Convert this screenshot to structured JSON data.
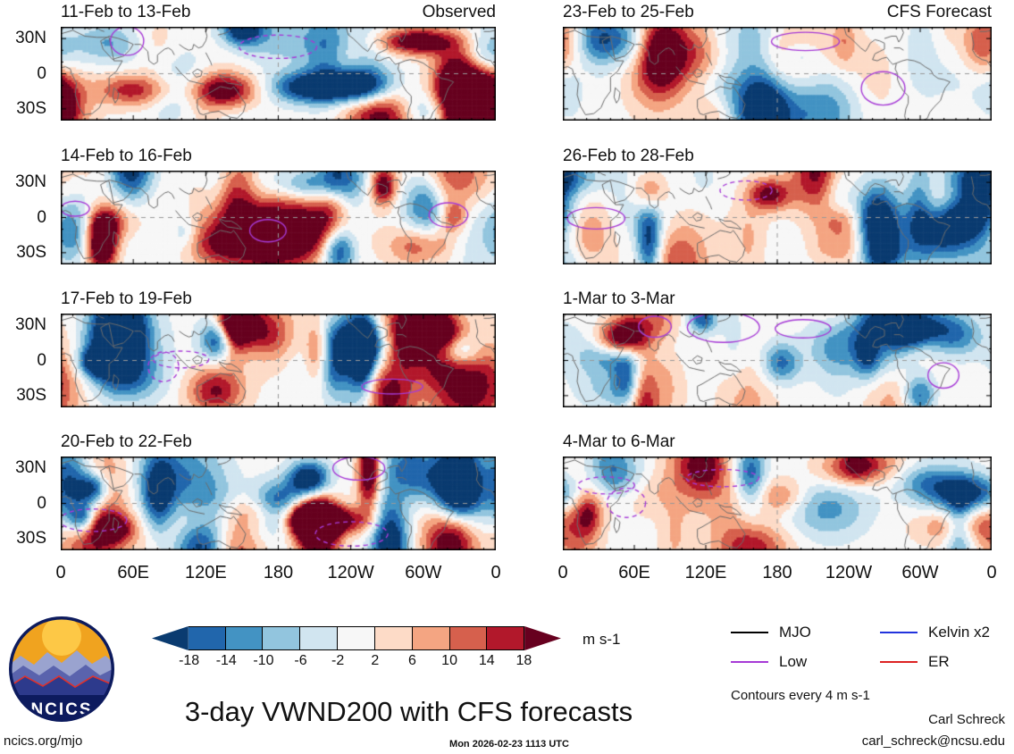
{
  "panels": [
    {
      "title": "11-Feb to 13-Feb",
      "corner": "Observed"
    },
    {
      "title": "14-Feb to 16-Feb",
      "corner": ""
    },
    {
      "title": "17-Feb to 19-Feb",
      "corner": ""
    },
    {
      "title": "20-Feb to 22-Feb",
      "corner": ""
    },
    {
      "title": "23-Feb to 25-Feb",
      "corner": "CFS Forecast"
    },
    {
      "title": "26-Feb to 28-Feb",
      "corner": ""
    },
    {
      "title": "1-Mar to 3-Mar",
      "corner": ""
    },
    {
      "title": "4-Mar to 6-Mar",
      "corner": ""
    }
  ],
  "axes": {
    "y_ticks": [
      "30N",
      "0",
      "30S"
    ],
    "x_ticks": [
      "0",
      "60E",
      "120E",
      "180",
      "120W",
      "60W",
      "0"
    ]
  },
  "colorbar": {
    "tick_labels": [
      "-18",
      "-14",
      "-10",
      "-6",
      "-2",
      "2",
      "6",
      "10",
      "14",
      "18"
    ],
    "colors": [
      "#0a3b70",
      "#2166ac",
      "#4393c3",
      "#92c5de",
      "#d1e5f0",
      "#f7f7f7",
      "#fddbc7",
      "#f4a582",
      "#d6604d",
      "#b2182b",
      "#67001f"
    ],
    "units": "m s-1"
  },
  "legend": {
    "entries": [
      {
        "label": "MJO",
        "color": "#000000"
      },
      {
        "label": "Low",
        "color": "#a63ad6"
      },
      {
        "label": "Kelvin x2",
        "color": "#2233dd"
      },
      {
        "label": "ER",
        "color": "#dd2222"
      }
    ],
    "note": "Contours every 4 m s-1"
  },
  "footer": {
    "title": "3-day VWND200 with CFS forecasts",
    "credit_name": "Carl Schreck",
    "credit_email": "carl_schreck@ncsu.edu",
    "site": "ncics.org/mjo",
    "timestamp": "Mon 2026-02-23 1113 UTC",
    "logo_text": "NCICS"
  },
  "chart_data": {
    "type": "heatmap",
    "subtype": "filled_contour_world_map_grid",
    "title": "3-day VWND200 with CFS forecasts",
    "variable": "200-hPa meridional wind (VWND200)",
    "units": "m s-1",
    "contour_note": "Contours every 4 m s-1",
    "fill_levels": [
      -18,
      -14,
      -10,
      -6,
      -2,
      2,
      6,
      10,
      14,
      18
    ],
    "lon_axis_ticks": [
      "0",
      "60E",
      "120E",
      "180",
      "120W",
      "60W",
      "0"
    ],
    "lat_axis_ticks": [
      "30N",
      "0",
      "30S"
    ],
    "columns": [
      {
        "label": "Observed",
        "panels": [
          "11-Feb to 13-Feb",
          "14-Feb to 16-Feb",
          "17-Feb to 19-Feb",
          "20-Feb to 22-Feb"
        ]
      },
      {
        "label": "CFS Forecast",
        "panels": [
          "23-Feb to 25-Feb",
          "26-Feb to 28-Feb",
          "1-Mar to 3-Mar",
          "4-Mar to 6-Mar"
        ]
      }
    ],
    "wave_overlays": [
      {
        "name": "MJO",
        "color": "black"
      },
      {
        "name": "Low",
        "color": "purple"
      },
      {
        "name": "Kelvin x2",
        "color": "blue"
      },
      {
        "name": "ER",
        "color": "red"
      }
    ],
    "legend_position": "bottom-right",
    "grid": "dashed equator and dateline reference lines"
  }
}
